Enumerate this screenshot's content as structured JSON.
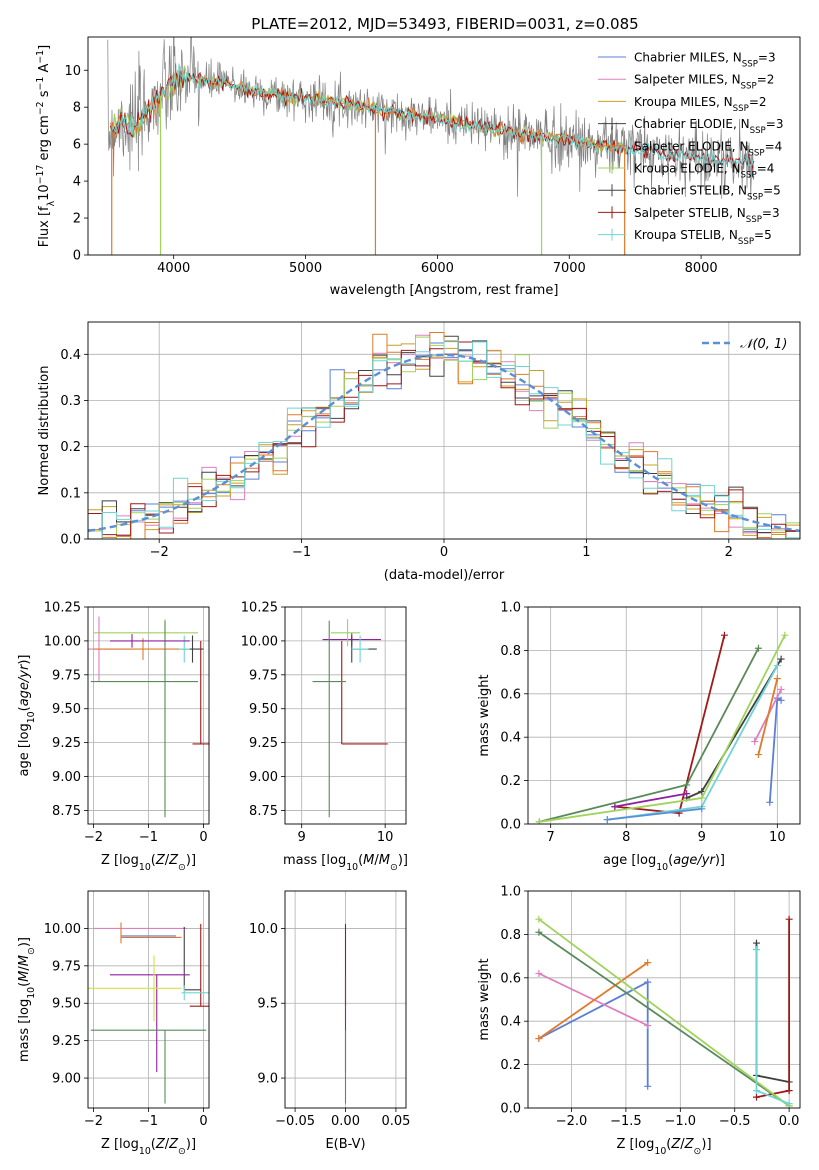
{
  "figure": {
    "title": "PLATE=2012, MJD=53493, FIBERID=0031, z=0.085"
  },
  "colors": {
    "grid": "#b0b0b0",
    "axes": "#000000",
    "data": "#808080",
    "Chabrier MILES": "#5b7fd6",
    "Salpeter MILES": "#e07fbf",
    "Kroupa MILES": "#c8a020",
    "Chabrier ELODIE": "#404040",
    "Salpeter ELODIE": "#e07a2a",
    "Kroupa ELODIE": "#9fd35a",
    "Chabrier STELIB": "#444444",
    "Salpeter STELIB": "#a01818",
    "Kroupa STELIB": "#6fd4d4",
    "extra_purple": "#9020a0",
    "extra_green": "#5a8a5a",
    "extra_yellow": "#d8e040",
    "normal": "#5b8fd6"
  },
  "chart_data": [
    {
      "id": "spectrum",
      "type": "line",
      "xlabel": "wavelength [Angstrom, rest frame]",
      "ylabel": "Flux [f_λ 10^-17 erg cm^-2 s^-1 A^-1]",
      "xlim": [
        3350,
        8750
      ],
      "ylim": [
        0,
        11.8
      ],
      "xticks": [
        4000,
        5000,
        6000,
        7000,
        8000
      ],
      "yticks": [
        0,
        2,
        4,
        6,
        8,
        10
      ],
      "grid": false,
      "legend_position": "top-right",
      "legend": [
        {
          "label": "Chabrier MILES, N_SSP=3",
          "style": "line"
        },
        {
          "label": "Salpeter MILES, N_SSP=2",
          "style": "line"
        },
        {
          "label": "Kroupa MILES, N_SSP=2",
          "style": "line"
        },
        {
          "label": "Chabrier ELODIE, N_SSP=3",
          "style": "plus"
        },
        {
          "label": "Salpeter ELODIE, N_SSP=4",
          "style": "plus"
        },
        {
          "label": "Kroupa ELODIE, N_SSP=4",
          "style": "plus"
        },
        {
          "label": "Chabrier STELIB, N_SSP=5",
          "style": "plus"
        },
        {
          "label": "Salpeter STELIB, N_SSP=3",
          "style": "plus"
        },
        {
          "label": "Kroupa STELIB, N_SSP=5",
          "style": "plus"
        }
      ],
      "continuum": {
        "x": [
          3500,
          3600,
          3700,
          3800,
          3900,
          4000,
          4100,
          4200,
          4400,
          4600,
          4800,
          5000,
          5200,
          5400,
          5600,
          5800,
          6000,
          6200,
          6400,
          6600,
          6800,
          7000,
          7200,
          7400,
          7600,
          7800,
          8000,
          8200,
          8400
        ],
        "y": [
          6.6,
          7.3,
          6.9,
          7.9,
          8.6,
          9.3,
          9.6,
          9.4,
          9.3,
          8.9,
          8.6,
          8.5,
          8.3,
          8.1,
          7.8,
          7.6,
          7.4,
          7.1,
          6.9,
          6.6,
          6.4,
          6.2,
          6.0,
          5.8,
          5.6,
          5.4,
          5.3,
          5.1,
          5.0
        ]
      }
    },
    {
      "id": "residuals",
      "type": "histogram",
      "xlabel": "(data-model)/error",
      "ylabel": "Normed distribution",
      "xlim": [
        -2.5,
        2.5
      ],
      "ylim": [
        0,
        0.47
      ],
      "xticks": [
        -2,
        -1,
        0,
        1,
        2
      ],
      "yticks": [
        0.0,
        0.1,
        0.2,
        0.3,
        0.4
      ],
      "grid": true,
      "legend_position": "top-right",
      "legend": [
        {
          "label": "N(0,1)",
          "style": "dashed"
        }
      ],
      "bin_width": 0.1
    },
    {
      "id": "age_vs_Z",
      "type": "errorbar",
      "xlabel": "Z [log10(Z/Z⊙)]",
      "ylabel": "age [log10(age/yr)]",
      "xlim": [
        -2.1,
        0.1
      ],
      "ylim": [
        8.65,
        10.25
      ],
      "xticks": [
        -2,
        -1,
        0
      ],
      "yticks": [
        8.75,
        9.0,
        9.25,
        9.5,
        9.75,
        10.0,
        10.25
      ],
      "grid": true,
      "points": [
        {
          "series": "Salpeter STELIB",
          "x": -0.05,
          "y": 9.24,
          "xerr": [
            0.15,
            0.15
          ],
          "yerr": [
            0.0,
            0.76
          ]
        },
        {
          "series": "Kroupa ELODIE",
          "x": -0.7,
          "y": 10.06,
          "xerr": [
            1.3,
            0.6
          ],
          "yerr": [
            0.1,
            0.1
          ]
        },
        {
          "series": "Chabrier ELODIE",
          "x": -0.2,
          "y": 9.94,
          "xerr": [
            0.2,
            0.2
          ],
          "yerr": [
            0.1,
            0.1
          ]
        },
        {
          "series": "Salpeter MILES",
          "x": -1.9,
          "y": 9.94,
          "xerr": [
            0.2,
            0.6
          ],
          "yerr": [
            0.24,
            0.24
          ]
        },
        {
          "series": "Salpeter ELODIE",
          "x": -1.1,
          "y": 9.94,
          "xerr": [
            0.9,
            0.8
          ],
          "yerr": [
            0.08,
            0.08
          ]
        },
        {
          "series": "Kroupa STELIB",
          "x": -0.35,
          "y": 9.94,
          "xerr": [
            0.1,
            0.1
          ],
          "yerr": [
            0.1,
            0.1
          ]
        },
        {
          "series": "extra_green",
          "x": -0.7,
          "y": 9.7,
          "xerr": [
            1.35,
            0.6
          ],
          "yerr": [
            1.0,
            0.45
          ]
        },
        {
          "series": "extra_purple",
          "x": -1.3,
          "y": 10.0,
          "xerr": [
            0.4,
            1.05
          ],
          "yerr": [
            0.05,
            0.05
          ]
        }
      ]
    },
    {
      "id": "age_vs_mass",
      "type": "errorbar",
      "xlabel": "mass [log10(M/M⊙)]",
      "ylabel": "",
      "xlim": [
        8.8,
        10.25
      ],
      "ylim": [
        8.65,
        10.25
      ],
      "xticks": [
        9,
        10
      ],
      "yticks": [
        8.75,
        9.0,
        9.25,
        9.5,
        9.75,
        10.0,
        10.25
      ],
      "grid": true,
      "points": [
        {
          "series": "Salpeter STELIB",
          "x": 9.48,
          "y": 9.24,
          "xerr": [
            0.0,
            0.55
          ],
          "yerr": [
            0.0,
            0.76
          ]
        },
        {
          "series": "extra_purple",
          "x": 9.6,
          "y": 10.01,
          "xerr": [
            0.35,
            0.35
          ],
          "yerr": [
            0.05,
            0.05
          ]
        },
        {
          "series": "extra_green",
          "x": 9.33,
          "y": 9.7,
          "xerr": [
            0.2,
            0.2
          ],
          "yerr": [
            1.0,
            0.45
          ]
        },
        {
          "series": "Chabrier ELODIE",
          "x": 9.6,
          "y": 9.94,
          "xerr": [
            0.0,
            0.3
          ],
          "yerr": [
            0.1,
            0.1
          ]
        },
        {
          "series": "Kroupa STELIB",
          "x": 9.7,
          "y": 9.94,
          "xerr": [
            0.1,
            0.1
          ],
          "yerr": [
            0.1,
            0.1
          ]
        },
        {
          "series": "Kroupa ELODIE",
          "x": 9.55,
          "y": 10.06,
          "xerr": [
            0.2,
            0.15
          ],
          "yerr": [
            0.1,
            0.1
          ]
        }
      ]
    },
    {
      "id": "weight_vs_age",
      "type": "line",
      "xlabel": "age [log10(age/yr)]",
      "ylabel": "mass weight",
      "xlim": [
        6.7,
        10.3
      ],
      "ylim": [
        0.0,
        1.0
      ],
      "xticks": [
        7,
        8,
        9,
        10
      ],
      "yticks": [
        0.0,
        0.2,
        0.4,
        0.6,
        0.8,
        1.0
      ],
      "grid": true,
      "series": [
        {
          "name": "Chabrier MILES",
          "x": [
            9.9,
            10.0,
            10.05
          ],
          "y": [
            0.1,
            0.58,
            0.57
          ]
        },
        {
          "name": "Salpeter MILES",
          "x": [
            9.7,
            10.05
          ],
          "y": [
            0.38,
            0.62
          ]
        },
        {
          "name": "Salpeter ELODIE",
          "x": [
            9.75,
            10.0
          ],
          "y": [
            0.32,
            0.67
          ]
        },
        {
          "name": "Chabrier ELODIE",
          "x": [
            8.8,
            9.0,
            10.05
          ],
          "y": [
            0.12,
            0.15,
            0.76
          ]
        },
        {
          "name": "Salpeter STELIB",
          "x": [
            7.85,
            8.7,
            9.3
          ],
          "y": [
            0.08,
            0.05,
            0.87
          ]
        },
        {
          "name": "extra_purple",
          "x": [
            7.85,
            8.8
          ],
          "y": [
            0.08,
            0.14
          ]
        },
        {
          "name": "extra_green",
          "x": [
            6.85,
            8.8,
            9.75
          ],
          "y": [
            0.01,
            0.18,
            0.81
          ]
        },
        {
          "name": "Kroupa ELODIE",
          "x": [
            6.85,
            9.0,
            10.1
          ],
          "y": [
            0.01,
            0.12,
            0.87
          ]
        },
        {
          "name": "Kroupa STELIB",
          "x": [
            7.75,
            9.0,
            10.0
          ],
          "y": [
            0.02,
            0.08,
            0.73
          ]
        },
        {
          "name": "normal",
          "x": [
            7.75,
            9.0
          ],
          "y": [
            0.02,
            0.07
          ]
        }
      ]
    },
    {
      "id": "mass_vs_Z",
      "type": "errorbar",
      "xlabel": "Z [log10(Z/Z⊙)]",
      "ylabel": "mass [log10(M/M⊙)]",
      "xlim": [
        -2.1,
        0.1
      ],
      "ylim": [
        8.8,
        10.25
      ],
      "xticks": [
        -2,
        -1,
        0
      ],
      "yticks": [
        9.0,
        9.25,
        9.5,
        9.75,
        10.0
      ],
      "grid": true,
      "points": [
        {
          "series": "Salpeter STELIB",
          "x": -0.05,
          "y": 9.48,
          "xerr": [
            0.2,
            0.15
          ],
          "yerr": [
            0.0,
            0.55
          ]
        },
        {
          "series": "Salpeter MILES",
          "x": -1.5,
          "y": 10.0,
          "xerr": [
            0.5,
            1.2
          ],
          "yerr": [
            0.0,
            0.0
          ]
        },
        {
          "series": "Chabrier MILES",
          "x": -1.5,
          "y": 9.95,
          "xerr": [
            0.0,
            1.0
          ],
          "yerr": [
            0.0,
            0.0
          ]
        },
        {
          "series": "Salpeter ELODIE",
          "x": -1.5,
          "y": 9.94,
          "xerr": [
            0.0,
            1.1
          ],
          "yerr": [
            0.04,
            0.1
          ]
        },
        {
          "series": "Chabrier ELODIE",
          "x": -0.35,
          "y": 9.59,
          "xerr": [
            0.0,
            0.3
          ],
          "yerr": [
            0.0,
            0.42
          ]
        },
        {
          "series": "extra_purple",
          "x": -0.85,
          "y": 9.69,
          "xerr": [
            0.85,
            0.6
          ],
          "yerr": [
            0.65,
            0.0
          ]
        },
        {
          "series": "extra_yellow",
          "x": -0.9,
          "y": 9.6,
          "xerr": [
            1.2,
            0.5
          ],
          "yerr": [
            0.22,
            0.22
          ]
        },
        {
          "series": "extra_green",
          "x": -0.7,
          "y": 9.32,
          "xerr": [
            1.35,
            0.75
          ],
          "yerr": [
            0.49,
            0.0
          ]
        },
        {
          "series": "Kroupa STELIB",
          "x": -0.35,
          "y": 9.57,
          "xerr": [
            0.05,
            0.45
          ],
          "yerr": [
            0.05,
            0.05
          ]
        }
      ]
    },
    {
      "id": "mass_vs_EBV",
      "type": "errorbar",
      "xlabel": "E(B-V)",
      "ylabel": "",
      "xlim": [
        -0.06,
        0.06
      ],
      "ylim": [
        8.8,
        10.25
      ],
      "xticks": [
        -0.05,
        0.0,
        0.05
      ],
      "yticks": [
        9.0,
        9.5,
        10.0
      ],
      "grid": true,
      "points": [
        {
          "series": "Salpeter STELIB",
          "x": 0.0,
          "y": 9.48,
          "xerr": [
            0.0,
            0.0
          ],
          "yerr": [
            0.0,
            0.55
          ]
        },
        {
          "series": "extra_purple",
          "x": 0.0,
          "y": 9.69,
          "xerr": [
            0.0,
            0.0
          ],
          "yerr": [
            0.65,
            0.0
          ]
        },
        {
          "series": "extra_green",
          "x": 0.0,
          "y": 9.32,
          "xerr": [
            0.0,
            0.0
          ],
          "yerr": [
            0.49,
            0.0
          ]
        }
      ]
    },
    {
      "id": "weight_vs_Z",
      "type": "line",
      "xlabel": "Z [log10(Z/Z⊙)]",
      "ylabel": "mass weight",
      "xlim": [
        -2.4,
        0.1
      ],
      "ylim": [
        0.0,
        1.0
      ],
      "xticks": [
        -2.0,
        -1.5,
        -1.0,
        -0.5,
        0.0
      ],
      "yticks": [
        0.0,
        0.2,
        0.4,
        0.6,
        0.8,
        1.0
      ],
      "grid": true,
      "series": [
        {
          "name": "Chabrier MILES",
          "x": [
            -2.3,
            -1.3,
            -1.3
          ],
          "y": [
            0.32,
            0.58,
            0.1
          ]
        },
        {
          "name": "Salpeter MILES",
          "x": [
            -2.3,
            -1.3
          ],
          "y": [
            0.62,
            0.38
          ]
        },
        {
          "name": "Salpeter ELODIE",
          "x": [
            -2.3,
            -1.3
          ],
          "y": [
            0.32,
            0.67
          ]
        },
        {
          "name": "Chabrier ELODIE",
          "x": [
            -0.3,
            -0.3,
            0.0
          ],
          "y": [
            0.76,
            0.15,
            0.12
          ]
        },
        {
          "name": "Salpeter STELIB",
          "x": [
            -0.3,
            0.0,
            0.0
          ],
          "y": [
            0.05,
            0.08,
            0.87
          ]
        },
        {
          "name": "extra_green",
          "x": [
            -2.3,
            0.0
          ],
          "y": [
            0.81,
            0.01
          ]
        },
        {
          "name": "Kroupa ELODIE",
          "x": [
            -2.3,
            0.0
          ],
          "y": [
            0.87,
            0.01
          ]
        },
        {
          "name": "Kroupa STELIB",
          "x": [
            -0.3,
            -0.3,
            0.0
          ],
          "y": [
            0.73,
            0.08,
            0.02
          ]
        }
      ]
    }
  ]
}
